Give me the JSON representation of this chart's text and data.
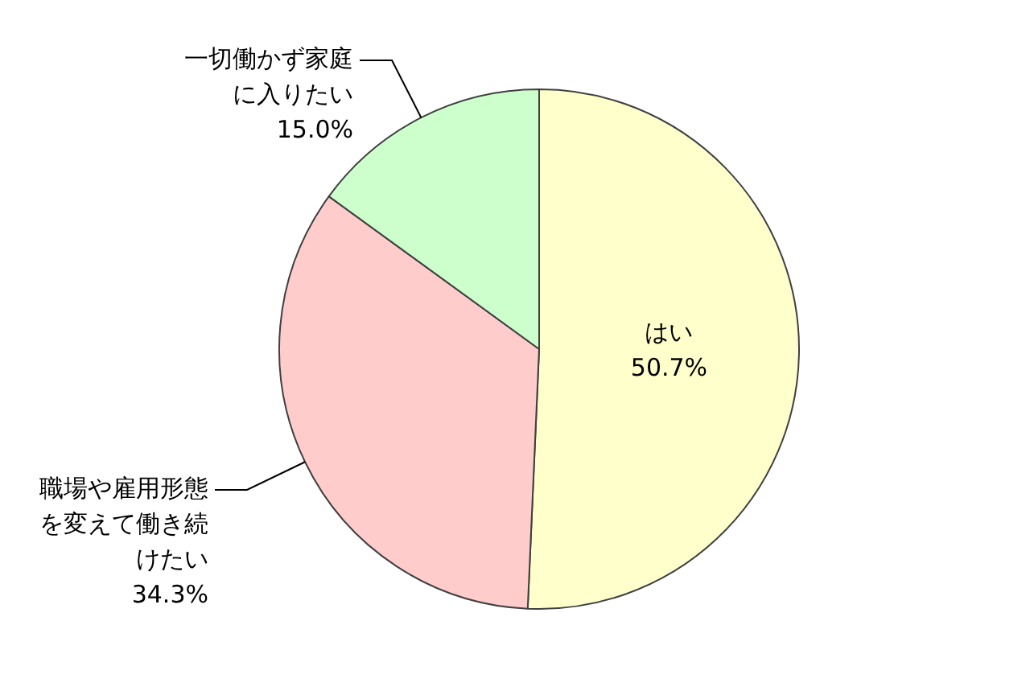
{
  "chart_data": {
    "type": "pie",
    "categories": [
      "はい",
      "職場や雇用形態を変えて働き続けたい",
      "一切働かず家庭に入りたい"
    ],
    "values": [
      50.7,
      34.3,
      15.0
    ],
    "colors": [
      "#ffffcc",
      "#ffcccc",
      "#ccffcc"
    ],
    "value_labels": [
      "50.7%",
      "34.3%",
      "15.0%"
    ],
    "legend": false
  }
}
